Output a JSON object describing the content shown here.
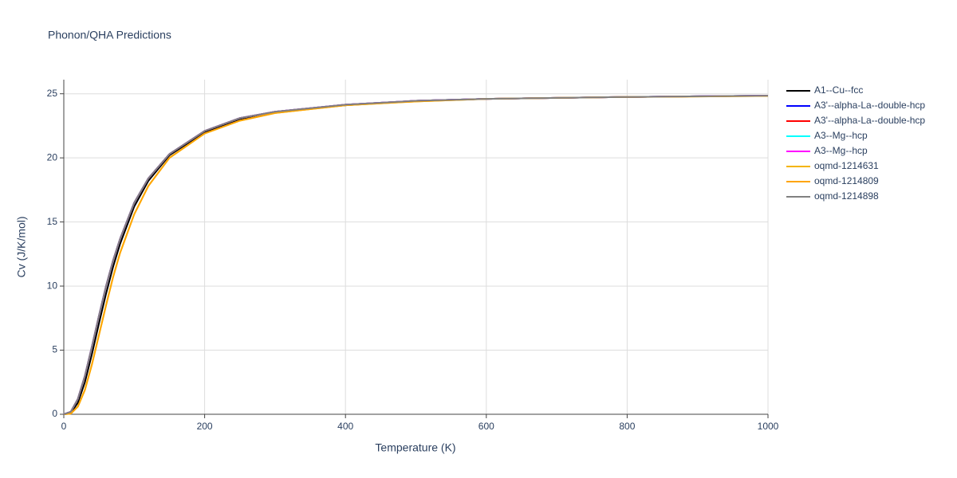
{
  "chart_data": {
    "type": "line",
    "title": "Phonon/QHA Predictions",
    "x_label": "Temperature (K)",
    "y_label": "Cv (J/K/mol)",
    "x": [
      0,
      10,
      20,
      30,
      40,
      50,
      60,
      70,
      80,
      100,
      120,
      150,
      200,
      250,
      300,
      400,
      500,
      600,
      800,
      1000
    ],
    "series": [
      {
        "name": "A1--Cu--fcc",
        "color": "#000000",
        "values": [
          0,
          0.1,
          0.9,
          2.5,
          4.7,
          7.1,
          9.4,
          11.5,
          13.3,
          16.2,
          18.2,
          20.2,
          22.0,
          23.0,
          23.6,
          24.1,
          24.45,
          24.6,
          24.75,
          24.85
        ]
      },
      {
        "name": "A3'--alpha-La--double-hcp",
        "color": "#0000ff",
        "values": [
          0,
          0.2,
          1.2,
          3.0,
          5.3,
          7.7,
          10.0,
          12.0,
          13.7,
          16.5,
          18.4,
          20.3,
          22.1,
          23.1,
          23.6,
          24.15,
          24.45,
          24.6,
          24.75,
          24.85
        ]
      },
      {
        "name": "A3'--alpha-La--double-hcp",
        "color": "#ff0000",
        "values": [
          0,
          0.2,
          1.2,
          3.0,
          5.3,
          7.7,
          10.0,
          12.0,
          13.7,
          16.5,
          18.4,
          20.3,
          22.1,
          23.1,
          23.6,
          24.15,
          24.45,
          24.6,
          24.75,
          24.85
        ]
      },
      {
        "name": "A3--Mg--hcp",
        "color": "#00ffff",
        "values": [
          0,
          0.2,
          1.2,
          3.0,
          5.3,
          7.7,
          10.0,
          12.0,
          13.7,
          16.5,
          18.4,
          20.3,
          22.1,
          23.1,
          23.6,
          24.15,
          24.45,
          24.6,
          24.75,
          24.85
        ]
      },
      {
        "name": "A3--Mg--hcp",
        "color": "#ff00ff",
        "values": [
          0,
          0.2,
          1.2,
          3.0,
          5.3,
          7.7,
          10.0,
          12.0,
          13.7,
          16.5,
          18.4,
          20.3,
          22.1,
          23.1,
          23.6,
          24.15,
          24.45,
          24.6,
          24.75,
          24.85
        ]
      },
      {
        "name": "oqmd-1214631",
        "color": "#f4b400",
        "values": [
          0,
          0.05,
          0.6,
          1.9,
          3.9,
          6.2,
          8.5,
          10.7,
          12.6,
          15.6,
          17.8,
          20.0,
          21.9,
          22.9,
          23.5,
          24.1,
          24.4,
          24.6,
          24.75,
          24.83
        ]
      },
      {
        "name": "oqmd-1214809",
        "color": "#ffa500",
        "values": [
          0,
          0.05,
          0.6,
          1.9,
          3.9,
          6.2,
          8.5,
          10.7,
          12.6,
          15.6,
          17.8,
          20.0,
          21.9,
          22.9,
          23.5,
          24.1,
          24.4,
          24.6,
          24.75,
          24.83
        ]
      },
      {
        "name": "oqmd-1214898",
        "color": "#808080",
        "values": [
          0,
          0.2,
          1.2,
          3.0,
          5.3,
          7.7,
          10.0,
          12.0,
          13.7,
          16.5,
          18.4,
          20.3,
          22.1,
          23.1,
          23.6,
          24.15,
          24.45,
          24.6,
          24.75,
          24.85
        ]
      }
    ],
    "xlim": [
      0,
      1000
    ],
    "xticks": [
      0,
      200,
      400,
      600,
      800,
      1000
    ],
    "ylim": [
      0,
      26.1
    ],
    "yticks": [
      0,
      5,
      10,
      15,
      20,
      25
    ],
    "grid": true
  }
}
